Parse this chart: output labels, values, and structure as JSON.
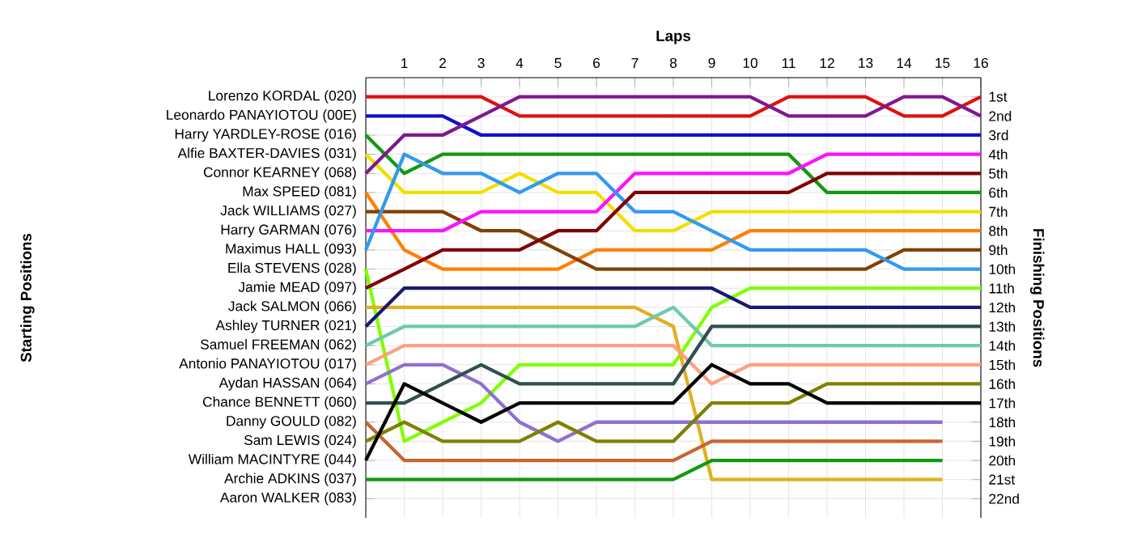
{
  "chart_data": {
    "type": "line",
    "xlabel": "Laps",
    "ylabel": "Finishing Positions",
    "annotations": [
      "Starting Positions",
      "Lorenzo KORDAL (020)",
      "Leonardo PANAYIOTOU (00E)",
      "Harry YARDLEY-ROSE (016)",
      "Alfie BAXTER-DAVIES (031)",
      "Connor KEARNEY (068)",
      "Max SPEED (081)",
      "Jack WILLIAMS (027)",
      "Harry GARMAN (076)",
      "Maximus HALL (093)",
      "Ella STEVENS (028)",
      "Jamie MEAD (097)",
      "Jack SALMON (066)",
      "Ashley TURNER (021)",
      "Samuel FREEMAN (062)",
      "Antonio PANAYIOTOU (017)",
      "Aydan HASSAN (064)",
      "Chance BENNETT (060)",
      "Danny GOULD (082)",
      "Sam LEWIS (024)",
      "William MACINTYRE (044)",
      "Archie ADKINS (037)",
      "Aaron WALKER (083)"
    ],
    "x": [
      0,
      1,
      2,
      3,
      4,
      5,
      6,
      7,
      8,
      9,
      10,
      11,
      12,
      13,
      14,
      15,
      16
    ],
    "xlim": [
      0,
      16
    ],
    "xticks": [
      1,
      2,
      3,
      4,
      5,
      6,
      7,
      8,
      9,
      10,
      11,
      12,
      13,
      14,
      15,
      16
    ],
    "ylim": [
      23,
      0
    ],
    "yticks": [
      {
        "value": 1,
        "label": "1st"
      },
      {
        "value": 2,
        "label": "2nd"
      },
      {
        "value": 3,
        "label": "3rd"
      },
      {
        "value": 4,
        "label": "4th"
      },
      {
        "value": 5,
        "label": "5th"
      },
      {
        "value": 6,
        "label": "6th"
      },
      {
        "value": 7,
        "label": "7th"
      },
      {
        "value": 8,
        "label": "8th"
      },
      {
        "value": 9,
        "label": "9th"
      },
      {
        "value": 10,
        "label": "10th"
      },
      {
        "value": 11,
        "label": "11th"
      },
      {
        "value": 12,
        "label": "12th"
      },
      {
        "value": 13,
        "label": "13th"
      },
      {
        "value": 14,
        "label": "14th"
      },
      {
        "value": 15,
        "label": "15th"
      },
      {
        "value": 16,
        "label": "16th"
      },
      {
        "value": 17,
        "label": "17th"
      },
      {
        "value": 18,
        "label": "18th"
      },
      {
        "value": 19,
        "label": "19th"
      },
      {
        "value": 20,
        "label": "20th"
      },
      {
        "value": 21,
        "label": "21st"
      },
      {
        "value": 22,
        "label": "22nd"
      }
    ],
    "grid": true,
    "line_style": "solid",
    "series": [
      {
        "color": "#e01010",
        "values": [
          1,
          1,
          1,
          1,
          2,
          2,
          2,
          2,
          2,
          2,
          2,
          1,
          1,
          1,
          2,
          2,
          1
        ]
      },
      {
        "color": "#1010d0",
        "values": [
          2,
          2,
          2,
          3,
          3,
          3,
          3,
          3,
          3,
          3,
          3,
          3,
          3,
          3,
          3,
          3,
          3
        ]
      },
      {
        "color": "#109a10",
        "values": [
          3,
          5,
          4,
          4,
          4,
          4,
          4,
          4,
          4,
          4,
          4,
          4,
          6,
          6,
          6,
          6,
          6
        ]
      },
      {
        "color": "#f0e000",
        "values": [
          4,
          6,
          6,
          6,
          5,
          6,
          6,
          8,
          8,
          7,
          7,
          7,
          7,
          7,
          7,
          7,
          7
        ]
      },
      {
        "color": "#801890",
        "values": [
          5,
          3,
          3,
          2,
          1,
          1,
          1,
          1,
          1,
          1,
          1,
          2,
          2,
          2,
          1,
          1,
          2
        ]
      },
      {
        "color": "#ff8000",
        "values": [
          6,
          9,
          10,
          10,
          10,
          10,
          9,
          9,
          9,
          9,
          8,
          8,
          8,
          8,
          8,
          8,
          8
        ]
      },
      {
        "color": "#804000",
        "values": [
          7,
          7,
          7,
          8,
          8,
          9,
          10,
          10,
          10,
          10,
          10,
          10,
          10,
          10,
          9,
          9,
          9
        ]
      },
      {
        "color": "#ff10ff",
        "values": [
          8,
          8,
          8,
          7,
          7,
          7,
          7,
          5,
          5,
          5,
          5,
          5,
          4,
          4,
          4,
          4,
          4
        ]
      },
      {
        "color": "#3399ee",
        "values": [
          9,
          4,
          5,
          5,
          6,
          5,
          5,
          7,
          7,
          8,
          9,
          9,
          9,
          9,
          10,
          10,
          10
        ]
      },
      {
        "color": "#80ff00",
        "values": [
          10,
          19,
          18,
          17,
          15,
          15,
          15,
          15,
          15,
          12,
          11,
          11,
          11,
          11,
          11,
          11,
          11
        ]
      },
      {
        "color": "#800000",
        "values": [
          11,
          10,
          9,
          9,
          9,
          8,
          8,
          6,
          6,
          6,
          6,
          6,
          5,
          5,
          5,
          5,
          5
        ]
      },
      {
        "color": "#e0b020",
        "values": [
          12,
          12,
          12,
          12,
          12,
          12,
          12,
          12,
          13,
          21,
          21,
          21,
          21,
          21,
          21,
          21,
          null
        ]
      },
      {
        "color": "#1a1a70",
        "values": [
          13,
          11,
          11,
          11,
          11,
          11,
          11,
          11,
          11,
          11,
          12,
          12,
          12,
          12,
          12,
          12,
          12
        ]
      },
      {
        "color": "#70c8b0",
        "values": [
          14,
          13,
          13,
          13,
          13,
          13,
          13,
          13,
          12,
          14,
          14,
          14,
          14,
          14,
          14,
          14,
          14
        ]
      },
      {
        "color": "#ffa080",
        "values": [
          15,
          14,
          14,
          14,
          14,
          14,
          14,
          14,
          14,
          16,
          15,
          15,
          15,
          15,
          15,
          15,
          15
        ]
      },
      {
        "color": "#9070d0",
        "values": [
          16,
          15,
          15,
          16,
          18,
          19,
          18,
          18,
          18,
          18,
          18,
          18,
          18,
          18,
          18,
          18,
          null
        ]
      },
      {
        "color": "#305050",
        "values": [
          17,
          17,
          16,
          15,
          16,
          16,
          16,
          16,
          16,
          13,
          13,
          13,
          13,
          13,
          13,
          13,
          13
        ]
      },
      {
        "color": "#c86430",
        "values": [
          18,
          20,
          20,
          20,
          20,
          20,
          20,
          20,
          20,
          19,
          19,
          19,
          19,
          19,
          19,
          19,
          null
        ]
      },
      {
        "color": "#808000",
        "values": [
          19,
          18,
          19,
          19,
          19,
          18,
          19,
          19,
          19,
          17,
          17,
          17,
          16,
          16,
          16,
          16,
          16
        ]
      },
      {
        "color": "#000000",
        "values": [
          20,
          16,
          17,
          18,
          17,
          17,
          17,
          17,
          17,
          15,
          16,
          16,
          17,
          17,
          17,
          17,
          17
        ]
      },
      {
        "color": "#109a10",
        "values": [
          21,
          21,
          21,
          21,
          21,
          21,
          21,
          21,
          21,
          20,
          20,
          20,
          20,
          20,
          20,
          20,
          null
        ]
      }
    ]
  }
}
